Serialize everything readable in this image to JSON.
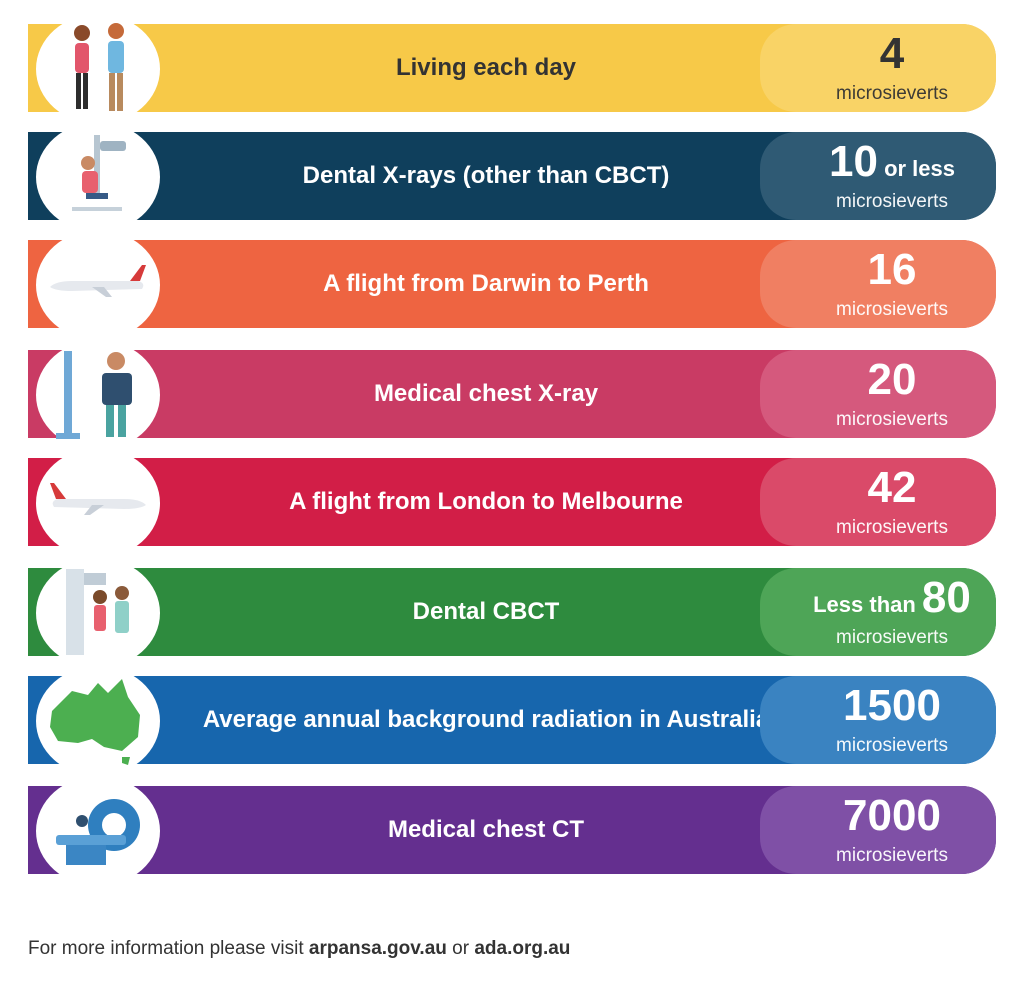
{
  "rows": [
    {
      "label": "Living each day",
      "pre": "",
      "number": "4",
      "suf": "",
      "unit": "microsieverts",
      "color": "#f7c948",
      "value_color": "#f9d366",
      "text_color": "#333333",
      "icon": "people-icon"
    },
    {
      "label": "Dental X-rays (other than CBCT)",
      "pre": "",
      "number": "10",
      "suf": " or less",
      "unit": "microsieverts",
      "color": "#0f3f5c",
      "value_color": "#2f5a74",
      "text_color": "#ffffff",
      "icon": "dental-xray-chair-icon"
    },
    {
      "label": "A flight from Darwin to Perth",
      "pre": "",
      "number": "16",
      "suf": "",
      "unit": "microsieverts",
      "color": "#ee6441",
      "value_color": "#f07f62",
      "text_color": "#ffffff",
      "icon": "airplane-icon"
    },
    {
      "label": "Medical chest X-ray",
      "pre": "",
      "number": "20",
      "suf": "",
      "unit": "microsieverts",
      "color": "#c93b64",
      "value_color": "#d5597d",
      "text_color": "#ffffff",
      "icon": "chest-xray-icon"
    },
    {
      "label": "A flight from London to Melbourne",
      "pre": "",
      "number": "42",
      "suf": "",
      "unit": "microsieverts",
      "color": "#d21e47",
      "value_color": "#da4a69",
      "text_color": "#ffffff",
      "icon": "airplane-icon"
    },
    {
      "label": "Dental CBCT",
      "pre": "Less than ",
      "number": "80",
      "suf": "",
      "unit": "microsieverts",
      "color": "#2e8b3e",
      "value_color": "#4ea557",
      "text_color": "#ffffff",
      "icon": "dental-cbct-icon"
    },
    {
      "label": "Average annual background radiation in Australia",
      "pre": "",
      "number": "1500",
      "suf": "",
      "unit": "microsieverts",
      "color": "#1766ad",
      "value_color": "#3a83c1",
      "text_color": "#ffffff",
      "icon": "australia-map-icon"
    },
    {
      "label": "Medical chest CT",
      "pre": "",
      "number": "7000",
      "suf": "",
      "unit": "microsieverts",
      "color": "#642f8f",
      "value_color": "#7f50a6",
      "text_color": "#ffffff",
      "icon": "ct-scanner-icon"
    }
  ],
  "footer": {
    "prefix": "For more information please visit ",
    "link1": "arpansa.gov.au",
    "middle": " or ",
    "link2": "ada.org.au"
  }
}
